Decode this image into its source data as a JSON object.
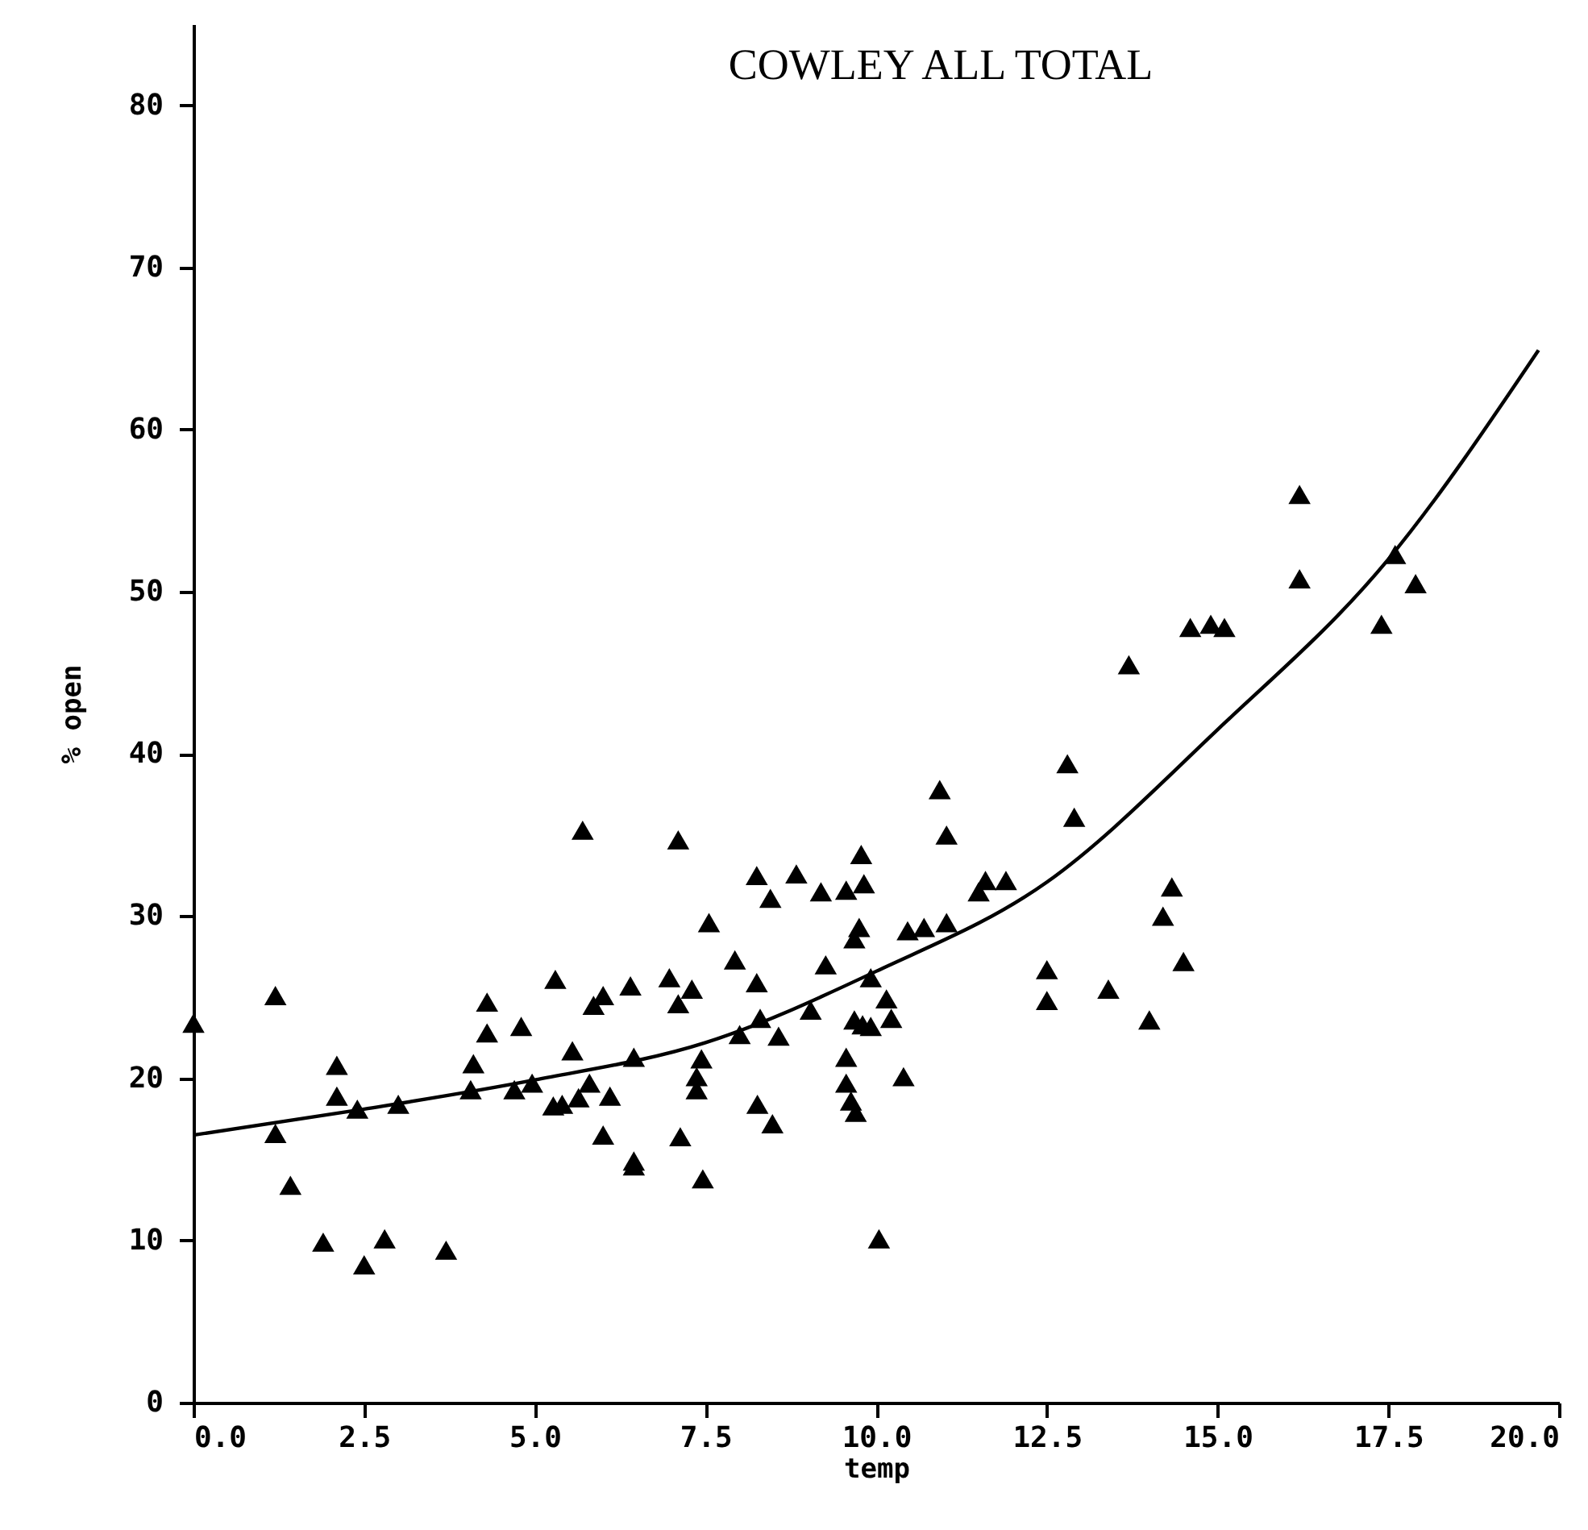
{
  "chart_data": {
    "type": "scatter",
    "title": "COWLEY ALL TOTAL",
    "xlabel": "temp",
    "ylabel": "% open",
    "xlim": [
      0,
      20
    ],
    "ylim": [
      0,
      85
    ],
    "xticks": [
      {
        "value": 0,
        "label": "0.0"
      },
      2.5,
      {
        "value": 5,
        "label": "5.0"
      },
      7.5,
      {
        "value": 10,
        "label": "10.0"
      },
      12.5,
      {
        "value": 15,
        "label": "15.0"
      },
      17.5,
      {
        "value": 20,
        "label": "20.0"
      }
    ],
    "yticks": [
      0,
      10,
      20,
      30,
      40,
      50,
      60,
      70,
      80
    ],
    "grid": false,
    "series": [
      {
        "marker": "triangle",
        "color": "#000000",
        "x": [
          0.0,
          1.2,
          1.2,
          1.42,
          1.9,
          2.1,
          2.1,
          2.4,
          2.5,
          2.8,
          3.0,
          3.7,
          4.06,
          4.1,
          4.3,
          4.3,
          4.7,
          4.8,
          4.96,
          5.27,
          5.3,
          5.4,
          5.55,
          5.64,
          5.7,
          5.8,
          5.86,
          6.0,
          6.0,
          6.1,
          6.4,
          6.45,
          6.45,
          6.45,
          6.97,
          7.1,
          7.1,
          7.13,
          7.3,
          7.37,
          7.37,
          7.44,
          7.46,
          7.55,
          7.93,
          8.0,
          8.25,
          8.25,
          8.26,
          8.3,
          8.45,
          8.48,
          8.57,
          8.83,
          9.04,
          9.19,
          9.26,
          9.56,
          9.56,
          9.56,
          9.63,
          9.68,
          9.68,
          9.7,
          9.75,
          9.78,
          9.8,
          9.82,
          9.92,
          9.92,
          10.04,
          10.15,
          10.22,
          10.4,
          10.46,
          10.7,
          10.93,
          11.03,
          11.03,
          11.5,
          11.6,
          11.9,
          12.5,
          12.5,
          12.8,
          12.9,
          13.4,
          13.7,
          14.0,
          14.2,
          14.33,
          14.5,
          14.6,
          14.9,
          15.1,
          16.2,
          16.2,
          17.4,
          17.6,
          17.9
        ],
        "values": [
          23.4,
          25.1,
          16.6,
          13.4,
          9.9,
          18.9,
          20.8,
          18.1,
          8.5,
          10.1,
          18.4,
          9.4,
          19.3,
          20.9,
          22.8,
          24.7,
          19.3,
          23.2,
          19.7,
          18.3,
          26.1,
          18.4,
          21.7,
          18.8,
          35.3,
          19.7,
          24.5,
          25.1,
          16.5,
          18.9,
          25.7,
          21.3,
          14.9,
          14.6,
          26.2,
          24.6,
          34.7,
          16.4,
          25.5,
          20.1,
          19.3,
          21.2,
          13.8,
          29.6,
          27.3,
          22.7,
          32.5,
          25.9,
          18.4,
          23.7,
          31.1,
          17.2,
          22.6,
          32.6,
          24.2,
          31.5,
          27.0,
          21.3,
          31.6,
          19.7,
          18.6,
          28.6,
          23.6,
          17.9,
          29.3,
          33.8,
          23.3,
          32.0,
          26.2,
          23.2,
          10.1,
          24.9,
          23.7,
          20.1,
          29.1,
          29.3,
          37.8,
          35.0,
          29.6,
          31.5,
          32.2,
          32.2,
          26.7,
          24.8,
          39.4,
          36.1,
          25.5,
          45.5,
          23.6,
          30.0,
          31.8,
          27.2,
          47.8,
          48.0,
          47.8,
          56.0,
          50.8,
          48.0,
          52.3,
          50.5
        ]
      },
      {
        "type": "line",
        "color": "#000000",
        "x": [
          0,
          2.5,
          5,
          7.5,
          10,
          12.5,
          15,
          17.5,
          19.7
        ],
        "values": [
          16.5,
          18.1,
          19.9,
          22.2,
          26.6,
          32.1,
          41.5,
          52.0,
          64.9
        ]
      }
    ]
  }
}
